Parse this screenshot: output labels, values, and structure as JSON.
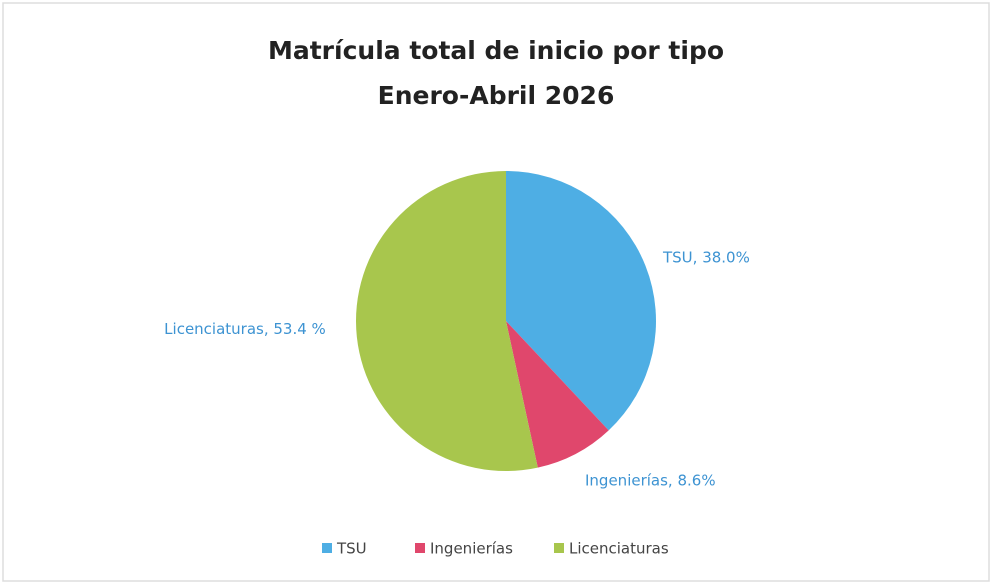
{
  "chart_data": {
    "type": "pie",
    "title": "Matrícula  total de inicio por tipo",
    "subtitle": "Enero-Abril 2026",
    "categories": [
      "TSU",
      "Ingenierías",
      "Licenciaturas"
    ],
    "values": [
      38.0,
      8.6,
      53.4
    ],
    "value_labels": [
      "TSU, 38.0%",
      "Ingenierías, 8.6%",
      "Licenciaturas, 53.4 %"
    ],
    "colors": [
      "#4eaee4",
      "#e0476c",
      "#a8c64d"
    ],
    "legend": "bottom"
  }
}
